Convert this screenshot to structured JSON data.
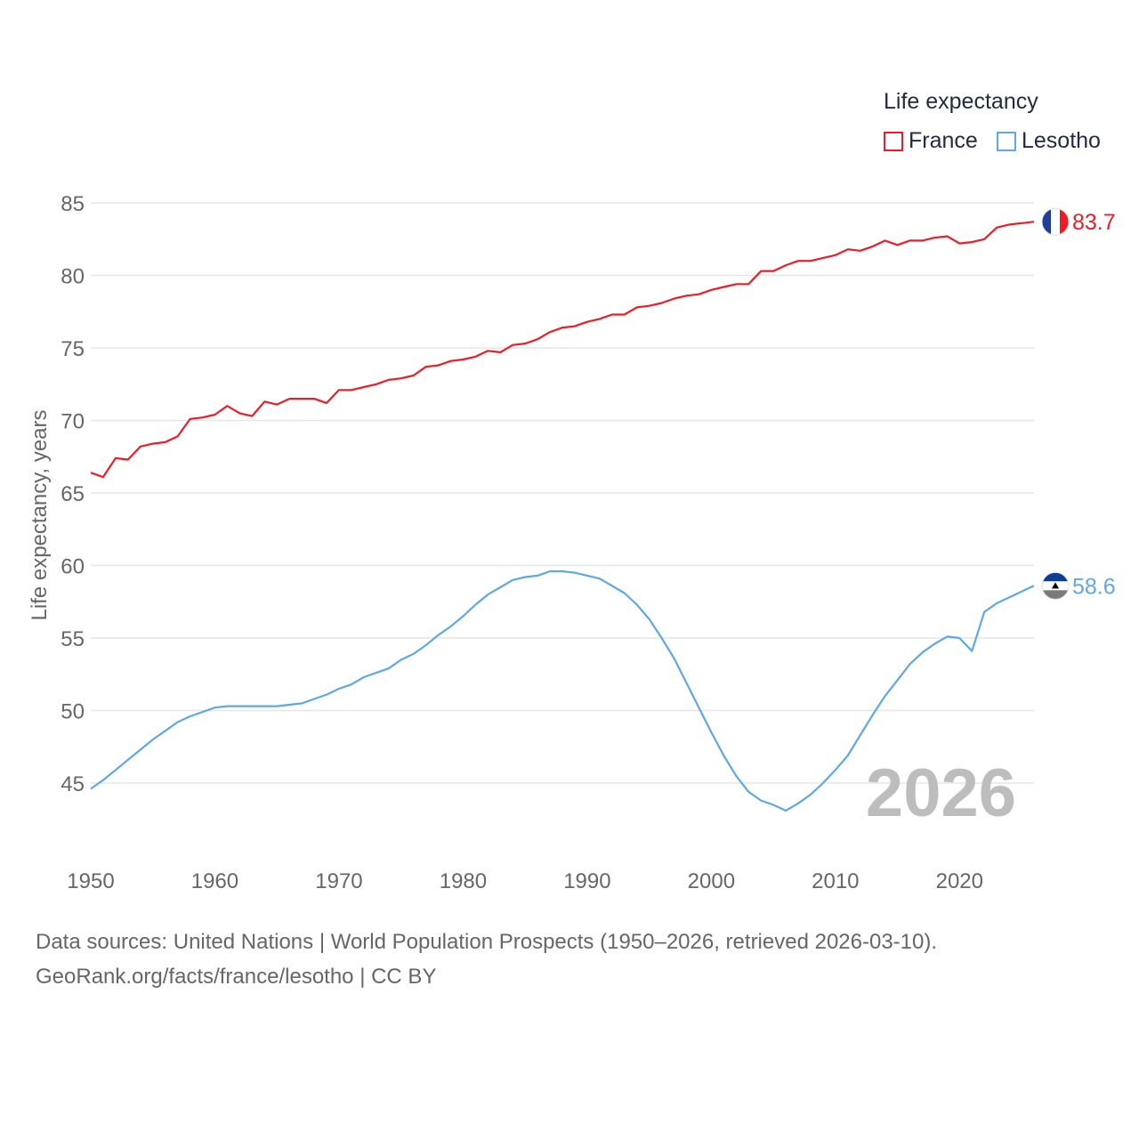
{
  "legend": {
    "title": "Life expectancy",
    "series": [
      {
        "name": "France",
        "color": "#ee1c25"
      },
      {
        "name": "Lesotho",
        "color": "#5ea8e8"
      }
    ]
  },
  "year_stamp": "2026",
  "footer": {
    "line1": "Data sources: United Nations | World Population Prospects (1950–2026, retrieved 2026-03-10).",
    "line2": "GeoRank.org/facts/france/lesotho | CC BY"
  },
  "chart_data": {
    "type": "line",
    "title": "Life expectancy",
    "xlabel": "",
    "ylabel": "Life expectancy, years",
    "xlim": [
      1950,
      2026
    ],
    "ylim": [
      42,
      86
    ],
    "x_ticks": [
      1950,
      1960,
      1970,
      1980,
      1990,
      2000,
      2010,
      2020
    ],
    "y_ticks": [
      45,
      50,
      55,
      60,
      65,
      70,
      75,
      80,
      85
    ],
    "grid": true,
    "legend_position": "top-right",
    "x": [
      1950,
      1951,
      1952,
      1953,
      1954,
      1955,
      1956,
      1957,
      1958,
      1959,
      1960,
      1961,
      1962,
      1963,
      1964,
      1965,
      1966,
      1967,
      1968,
      1969,
      1970,
      1971,
      1972,
      1973,
      1974,
      1975,
      1976,
      1977,
      1978,
      1979,
      1980,
      1981,
      1982,
      1983,
      1984,
      1985,
      1986,
      1987,
      1988,
      1989,
      1990,
      1991,
      1992,
      1993,
      1994,
      1995,
      1996,
      1997,
      1998,
      1999,
      2000,
      2001,
      2002,
      2003,
      2004,
      2005,
      2006,
      2007,
      2008,
      2009,
      2010,
      2011,
      2012,
      2013,
      2014,
      2015,
      2016,
      2017,
      2018,
      2019,
      2020,
      2021,
      2022,
      2023,
      2024,
      2025,
      2026
    ],
    "series": [
      {
        "name": "France",
        "color": "#ee1c25",
        "end_label": "83.7",
        "values": [
          66.4,
          66.1,
          67.4,
          67.3,
          68.2,
          68.4,
          68.5,
          68.9,
          70.1,
          70.2,
          70.4,
          71.0,
          70.5,
          70.3,
          71.3,
          71.1,
          71.5,
          71.5,
          71.5,
          71.2,
          72.1,
          72.1,
          72.3,
          72.5,
          72.8,
          72.9,
          73.1,
          73.7,
          73.8,
          74.1,
          74.2,
          74.4,
          74.8,
          74.7,
          75.2,
          75.3,
          75.6,
          76.1,
          76.4,
          76.5,
          76.8,
          77.0,
          77.3,
          77.3,
          77.8,
          77.9,
          78.1,
          78.4,
          78.6,
          78.7,
          79.0,
          79.2,
          79.4,
          79.4,
          80.3,
          80.3,
          80.7,
          81.0,
          81.0,
          81.2,
          81.4,
          81.8,
          81.7,
          82.0,
          82.4,
          82.1,
          82.4,
          82.4,
          82.6,
          82.7,
          82.2,
          82.3,
          82.5,
          83.3,
          83.5,
          83.6,
          83.7
        ]
      },
      {
        "name": "Lesotho",
        "color": "#5ea8e8",
        "end_label": "58.6",
        "values": [
          44.6,
          45.2,
          45.9,
          46.6,
          47.3,
          48.0,
          48.6,
          49.2,
          49.6,
          49.9,
          50.2,
          50.3,
          50.3,
          50.3,
          50.3,
          50.3,
          50.4,
          50.5,
          50.8,
          51.1,
          51.5,
          51.8,
          52.3,
          52.6,
          52.9,
          53.5,
          53.9,
          54.5,
          55.2,
          55.8,
          56.5,
          57.3,
          58.0,
          58.5,
          59.0,
          59.2,
          59.3,
          59.6,
          59.6,
          59.5,
          59.3,
          59.1,
          58.6,
          58.1,
          57.3,
          56.3,
          55.0,
          53.6,
          51.9,
          50.2,
          48.5,
          46.9,
          45.5,
          44.4,
          43.8,
          43.5,
          43.1,
          43.6,
          44.2,
          45.0,
          45.9,
          46.9,
          48.3,
          49.7,
          51.0,
          52.1,
          53.2,
          54.0,
          54.6,
          55.1,
          55.0,
          54.1,
          56.8,
          57.4,
          57.8,
          58.2,
          58.6
        ]
      }
    ]
  }
}
